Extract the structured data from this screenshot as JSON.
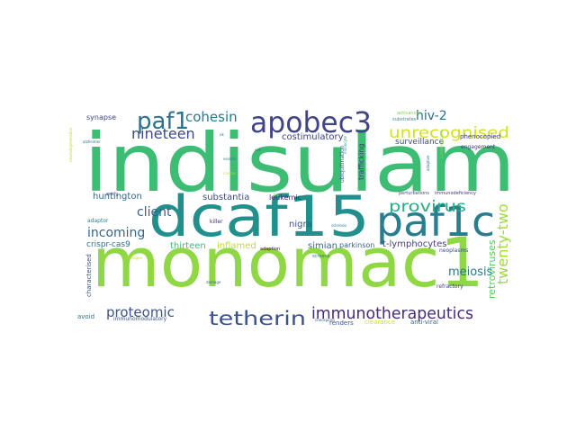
{
  "words": [
    {
      "text": "indisulam",
      "color": "#3dbc74"
    },
    {
      "text": "monomac1",
      "color": "#8fd744"
    },
    {
      "text": "dcaf15",
      "color": "#21908d"
    },
    {
      "text": "paf1c",
      "color": "#287d8e"
    },
    {
      "text": "apobec3",
      "color": "#414487"
    },
    {
      "text": "tetherin",
      "color": "#3b528b"
    },
    {
      "text": "immunotherapeutics",
      "color": "#472c7a"
    },
    {
      "text": "paf1",
      "color": "#2c728e"
    },
    {
      "text": "unrecognised",
      "color": "#d2e21b"
    },
    {
      "text": "provirus",
      "color": "#26ad81"
    },
    {
      "text": "twenty-two",
      "color": "#a0da39"
    },
    {
      "text": "cohesin",
      "color": "#2a788e"
    },
    {
      "text": "nineteen",
      "color": "#3e4989"
    },
    {
      "text": "hiv-2",
      "color": "#2f6c8e"
    },
    {
      "text": "client",
      "color": "#355f8d"
    },
    {
      "text": "incoming",
      "color": "#32658e"
    },
    {
      "text": "proteomic",
      "color": "#3b528b"
    },
    {
      "text": "meiosis",
      "color": "#2a768e"
    },
    {
      "text": "retroviruses",
      "color": "#5ec962"
    },
    {
      "text": "huntington",
      "color": "#31688e"
    },
    {
      "text": "substantia",
      "color": "#3e4a89"
    },
    {
      "text": "costimulatory",
      "color": "#424086"
    },
    {
      "text": "nigra",
      "color": "#3b518b"
    },
    {
      "text": "simian",
      "color": "#31678e"
    },
    {
      "text": "t-lymphocytes",
      "color": "#433e85"
    },
    {
      "text": "thirteen",
      "color": "#3dbc74"
    },
    {
      "text": "inflamed",
      "color": "#bddf26"
    },
    {
      "text": "crispr-cas9",
      "color": "#2e6e8e"
    },
    {
      "text": "surveillance",
      "color": "#3e4c8a"
    },
    {
      "text": "leukemic",
      "color": "#482475"
    },
    {
      "text": "trafficking",
      "color": "#46327e"
    },
    {
      "text": "parkinson",
      "color": "#365c8d"
    },
    {
      "text": "synapse",
      "color": "#414487"
    },
    {
      "text": "phenocopied",
      "color": "#443983"
    },
    {
      "text": "engagement",
      "color": "#46337f"
    },
    {
      "text": "killer",
      "color": "#482878"
    },
    {
      "text": "adaptor",
      "color": "#277f8e"
    },
    {
      "text": "entry",
      "color": "#3e4c8a"
    },
    {
      "text": "ubiquitination",
      "color": "#3b528b"
    },
    {
      "text": "perturbations",
      "color": "#3e4a89"
    },
    {
      "text": "immunodeficiency",
      "color": "#46337f"
    },
    {
      "text": "anticancer",
      "color": "#7ad151"
    },
    {
      "text": "substrates",
      "color": "#1f9a8a"
    },
    {
      "text": "alzheimer",
      "color": "#31688e"
    },
    {
      "text": "vesicle",
      "color": "#2a788e"
    },
    {
      "text": "monocyte",
      "color": "#1fa187"
    },
    {
      "text": "neurodegeneration",
      "color": "#b5de2b"
    },
    {
      "text": "adaption",
      "color": "#440154"
    },
    {
      "text": "adaptive",
      "color": "#2c728e"
    },
    {
      "text": "sclerosis",
      "color": "#277f8e"
    },
    {
      "text": "pathogen",
      "color": "#c8e020"
    },
    {
      "text": "screens",
      "color": "#2a788e"
    },
    {
      "text": "characterised",
      "color": "#3e4a89"
    },
    {
      "text": "damage",
      "color": "#31688e"
    },
    {
      "text": "refractory",
      "color": "#443a83"
    },
    {
      "text": "neoplasms",
      "color": "#3e4a89"
    },
    {
      "text": "avoid",
      "color": "#2c728e"
    },
    {
      "text": "immunomodulatory",
      "color": "#3b528b"
    },
    {
      "text": "checkpoint",
      "color": "#3b528b"
    },
    {
      "text": "renders",
      "color": "#3b528b"
    },
    {
      "text": "clearance",
      "color": "#d8e219"
    },
    {
      "text": "anti-viral",
      "color": "#34618d"
    },
    {
      "text": "hiv",
      "color": "#90d743"
    },
    {
      "text": "cell",
      "color": "#2e6e8e"
    },
    {
      "text": "nk",
      "color": "#31688e"
    },
    {
      "text": "cancer",
      "color": "#c2df23"
    },
    {
      "text": "cardiomyopathy",
      "color": "#90d743"
    }
  ]
}
